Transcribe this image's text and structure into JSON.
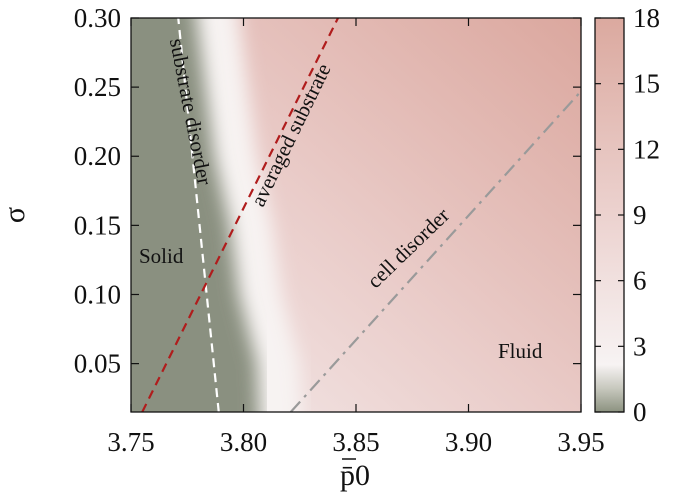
{
  "chart_data": {
    "type": "heatmap",
    "xlabel": "p̄0",
    "ylabel": "σ",
    "xlim": [
      3.75,
      3.95
    ],
    "ylim": [
      0.015,
      0.3
    ],
    "x_ticks": [
      {
        "value": 3.75,
        "label": "3.75"
      },
      {
        "value": 3.8,
        "label": "3.80"
      },
      {
        "value": 3.85,
        "label": "3.85"
      },
      {
        "value": 3.9,
        "label": "3.90"
      },
      {
        "value": 3.95,
        "label": "3.95"
      }
    ],
    "y_ticks": [
      {
        "value": 0.05,
        "label": "0.05"
      },
      {
        "value": 0.1,
        "label": "0.10"
      },
      {
        "value": 0.15,
        "label": "0.15"
      },
      {
        "value": 0.2,
        "label": "0.20"
      },
      {
        "value": 0.25,
        "label": "0.25"
      },
      {
        "value": 0.3,
        "label": "0.30"
      }
    ],
    "colorbar": {
      "range": [
        0,
        18
      ],
      "ticks": [
        {
          "value": 0,
          "label": "0"
        },
        {
          "value": 3,
          "label": "3"
        },
        {
          "value": 6,
          "label": "6"
        },
        {
          "value": 9,
          "label": "9"
        },
        {
          "value": 12,
          "label": "12"
        },
        {
          "value": 15,
          "label": "15"
        },
        {
          "value": 18,
          "label": "18"
        }
      ],
      "colors": {
        "low": "#8c9280",
        "mid": "#f7f3f3",
        "high": "#dcaaa0"
      }
    },
    "solid_boundary": [
      {
        "y": 0.015,
        "x": 3.807
      },
      {
        "y": 0.05,
        "x": 3.806
      },
      {
        "y": 0.1,
        "x": 3.798
      },
      {
        "y": 0.15,
        "x": 3.794
      },
      {
        "y": 0.2,
        "x": 3.787
      },
      {
        "y": 0.25,
        "x": 3.783
      },
      {
        "y": 0.3,
        "x": 3.778
      }
    ],
    "lines": [
      {
        "name": "substrate disorder",
        "style": "dashed",
        "color": "#ffffff",
        "points": [
          {
            "x": 3.789,
            "y": 0.015
          },
          {
            "x": 3.771,
            "y": 0.3
          }
        ]
      },
      {
        "name": "averaged substrate",
        "style": "dashed",
        "color": "#b01c1c",
        "points": [
          {
            "x": 3.755,
            "y": 0.015
          },
          {
            "x": 3.842,
            "y": 0.3
          }
        ]
      },
      {
        "name": "cell disorder",
        "style": "dash-dot",
        "color": "#9a9a9a",
        "points": [
          {
            "x": 3.821,
            "y": 0.015
          },
          {
            "x": 3.95,
            "y": 0.247
          }
        ]
      }
    ],
    "region_labels": [
      "Solid",
      "Fluid"
    ]
  }
}
